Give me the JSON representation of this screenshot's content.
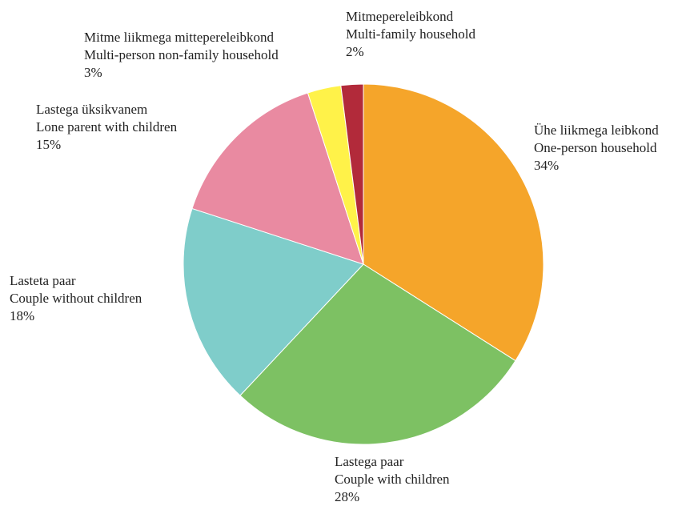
{
  "chart_data": {
    "type": "pie",
    "categories": [
      "Ühe liikmega leibkond",
      "Lastega paar",
      "Lasteta paar",
      "Lastega üksikvanem",
      "Mitme liikmega mittepereleibkond",
      "Mitmepereleibkond"
    ],
    "categories_en": [
      "One-person household",
      "Couple with children",
      "Couple without children",
      "Lone parent with children",
      "Multi-person non-family household",
      "Multi-family household"
    ],
    "values": [
      34,
      28,
      18,
      15,
      3,
      2
    ],
    "value_labels": [
      "34%",
      "28%",
      "18%",
      "15%",
      "3%",
      "2%"
    ],
    "colors": [
      "#f5a52a",
      "#7dc163",
      "#7fcdca",
      "#e98aa1",
      "#fff249",
      "#b22a3a"
    ]
  }
}
